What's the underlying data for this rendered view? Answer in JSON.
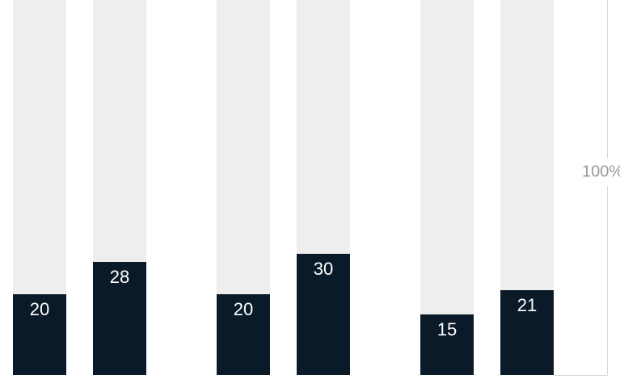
{
  "chart_data": {
    "type": "bar",
    "values": [
      20,
      28,
      20,
      30,
      15,
      21
    ],
    "color": "#0b1a29",
    "track_color": "#eeeeee",
    "ylim": [
      0,
      100
    ],
    "axis_label": "100%"
  }
}
